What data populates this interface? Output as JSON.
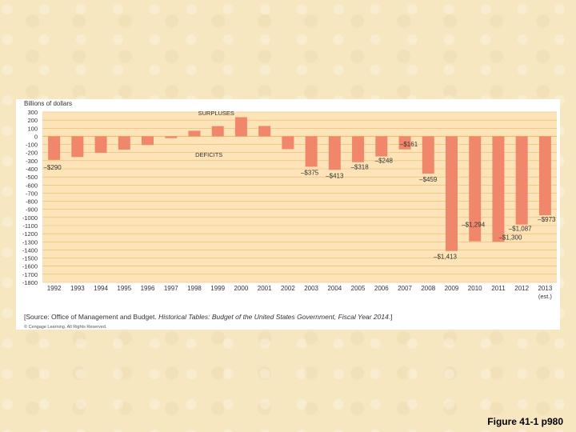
{
  "caption": "Figure 41-1 p980",
  "chart_data": {
    "type": "bar",
    "ylabel": "Billions of dollars",
    "ylim": [
      -1800,
      300
    ],
    "yticks": [
      300,
      200,
      100,
      0,
      -100,
      -200,
      -300,
      -400,
      -500,
      -600,
      -700,
      -800,
      -900,
      -1000,
      -1100,
      -1200,
      -1300,
      -1400,
      -1500,
      -1600,
      -1700,
      -1800
    ],
    "categories": [
      "1992",
      "1993",
      "1994",
      "1995",
      "1996",
      "1997",
      "1998",
      "1999",
      "2000",
      "2001",
      "2002",
      "2003",
      "2004",
      "2005",
      "2006",
      "2007",
      "2008",
      "2009",
      "2010",
      "2011",
      "2012",
      "2013"
    ],
    "category_note": "(est.)",
    "values": [
      -290,
      -255,
      -203,
      -164,
      -107,
      -22,
      69,
      126,
      236,
      128,
      -158,
      -375,
      -413,
      -318,
      -248,
      -161,
      -459,
      -1413,
      -1294,
      -1300,
      -1087,
      -973
    ],
    "data_labels": [
      {
        "index": 0,
        "text": "–$290"
      },
      {
        "index": 11,
        "text": "–$375"
      },
      {
        "index": 12,
        "text": "–$413"
      },
      {
        "index": 13,
        "text": "–$318"
      },
      {
        "index": 14,
        "text": "–$248"
      },
      {
        "index": 15,
        "text": "–$161"
      },
      {
        "index": 16,
        "text": "–$459"
      },
      {
        "index": 17,
        "text": "–$1,413"
      },
      {
        "index": 18,
        "text": "–$1,294"
      },
      {
        "index": 19,
        "text": "–$1,300"
      },
      {
        "index": 20,
        "text": "–$1,087"
      },
      {
        "index": 21,
        "text": "–$973"
      }
    ],
    "annotations": {
      "surpluses": "SURPLUSES",
      "deficits": "DEFICITS"
    },
    "source_prefix": "[Source: Office of Management and Budget. ",
    "source_title": "Historical Tables: Budget of the United States Government, Fiscal Year 2014",
    "source_suffix": ".]",
    "copyright": "© Cengage Learning. All Rights Reserved.",
    "colors": {
      "bar": "#f0876a",
      "plot_bg": "#fde3b8",
      "grid": "#e9b96a",
      "text": "#333333"
    }
  }
}
